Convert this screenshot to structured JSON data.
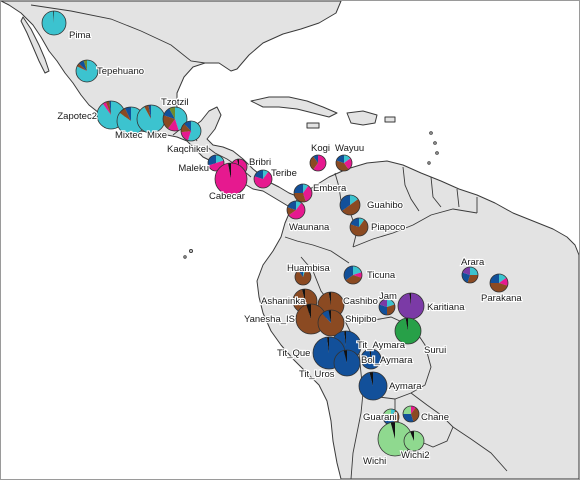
{
  "colors": {
    "cyan": "#3cc3cf",
    "magenta": "#e6198f",
    "brown": "#8b4a22",
    "navy": "#12509a",
    "purple": "#7b3aa6",
    "green": "#27a048",
    "lightgreen": "#8fd98f",
    "olive": "#6e8a2d",
    "black": "#111111",
    "land": "#e3e3e3",
    "border": "#3a3a3a"
  },
  "populations": [
    {
      "name": "Pima",
      "composition": {
        "cyan": 0.99,
        "black": 0.01
      }
    },
    {
      "name": "Tepehuano",
      "composition": {
        "cyan": 0.82,
        "navy": 0.08,
        "olive": 0.05,
        "brown": 0.05
      }
    },
    {
      "name": "Zapotec2",
      "composition": {
        "cyan": 0.9,
        "magenta": 0.04,
        "brown": 0.04,
        "navy": 0.02
      }
    },
    {
      "name": "Mixtec",
      "composition": {
        "cyan": 0.85,
        "brown": 0.08,
        "navy": 0.07
      }
    },
    {
      "name": "Mixe",
      "composition": {
        "cyan": 0.92,
        "brown": 0.05,
        "navy": 0.03
      }
    },
    {
      "name": "Tzotzil",
      "composition": {
        "cyan": 0.45,
        "brown": 0.2,
        "magenta": 0.15,
        "navy": 0.12,
        "olive": 0.08
      }
    },
    {
      "name": "Kaqchikel",
      "composition": {
        "cyan": 0.55,
        "magenta": 0.18,
        "navy": 0.12,
        "brown": 0.15
      }
    },
    {
      "name": "Maleku",
      "composition": {
        "magenta": 0.5,
        "navy": 0.3,
        "cyan": 0.2
      }
    },
    {
      "name": "Bribri",
      "composition": {
        "magenta": 0.96,
        "black": 0.04
      }
    },
    {
      "name": "Teribe",
      "composition": {
        "magenta": 0.7,
        "navy": 0.2,
        "cyan": 0.1
      }
    },
    {
      "name": "Cabecar",
      "composition": {
        "magenta": 0.97,
        "black": 0.03
      }
    },
    {
      "name": "Kogi",
      "composition": {
        "magenta": 0.6,
        "brown": 0.3,
        "navy": 0.1
      }
    },
    {
      "name": "Wayuu",
      "composition": {
        "brown": 0.4,
        "magenta": 0.25,
        "navy": 0.2,
        "cyan": 0.15
      }
    },
    {
      "name": "Embera",
      "composition": {
        "magenta": 0.35,
        "brown": 0.3,
        "navy": 0.25,
        "cyan": 0.1
      }
    },
    {
      "name": "Waunana",
      "composition": {
        "magenta": 0.55,
        "navy": 0.2,
        "brown": 0.15,
        "cyan": 0.1
      }
    },
    {
      "name": "Guahibo",
      "composition": {
        "brown": 0.5,
        "navy": 0.35,
        "cyan": 0.15
      }
    },
    {
      "name": "Piapoco",
      "composition": {
        "brown": 0.7,
        "navy": 0.2,
        "cyan": 0.1
      }
    },
    {
      "name": "Huambisa",
      "composition": {
        "brown": 0.85,
        "navy": 0.1,
        "cyan": 0.05
      }
    },
    {
      "name": "Ticuna",
      "composition": {
        "brown": 0.35,
        "navy": 0.35,
        "cyan": 0.2,
        "magenta": 0.1
      }
    },
    {
      "name": "Arara",
      "composition": {
        "brown": 0.3,
        "navy": 0.25,
        "cyan": 0.25,
        "purple": 0.2
      }
    },
    {
      "name": "Parakana",
      "composition": {
        "brown": 0.45,
        "navy": 0.25,
        "magenta": 0.15,
        "cyan": 0.15
      }
    },
    {
      "name": "Ashaninka",
      "composition": {
        "brown": 0.96,
        "black": 0.04
      }
    },
    {
      "name": "Cashibo",
      "composition": {
        "brown": 0.97,
        "black": 0.03
      }
    },
    {
      "name": "Yanesha_IS",
      "composition": {
        "brown": 0.95,
        "black": 0.05
      }
    },
    {
      "name": "Shipibo",
      "composition": {
        "brown": 0.88,
        "navy": 0.09,
        "black": 0.03
      }
    },
    {
      "name": "Jam",
      "composition": {
        "brown": 0.3,
        "navy": 0.3,
        "cyan": 0.2,
        "purple": 0.2
      }
    },
    {
      "name": "Karitiana",
      "composition": {
        "purple": 0.98,
        "black": 0.02
      }
    },
    {
      "name": "Surui",
      "composition": {
        "green": 0.97,
        "black": 0.03
      }
    },
    {
      "name": "Tit_Aymara",
      "composition": {
        "navy": 0.98,
        "black": 0.02
      }
    },
    {
      "name": "Tit_Que",
      "composition": {
        "navy": 0.98,
        "black": 0.02
      }
    },
    {
      "name": "Tit_Uros",
      "composition": {
        "navy": 0.96,
        "black": 0.04
      }
    },
    {
      "name": "Bol_Aymara",
      "composition": {
        "navy": 0.97,
        "black": 0.03
      }
    },
    {
      "name": "Aymara",
      "composition": {
        "navy": 0.96,
        "black": 0.04
      }
    },
    {
      "name": "Guarani",
      "composition": {
        "navy": 0.4,
        "brown": 0.3,
        "lightgreen": 0.2,
        "cyan": 0.1
      }
    },
    {
      "name": "Chane",
      "composition": {
        "brown": 0.35,
        "navy": 0.3,
        "lightgreen": 0.25,
        "magenta": 0.1
      }
    },
    {
      "name": "Wichi",
      "composition": {
        "lightgreen": 0.96,
        "black": 0.04
      }
    },
    {
      "name": "Wichi2",
      "composition": {
        "lightgreen": 0.94,
        "black": 0.06
      }
    }
  ]
}
